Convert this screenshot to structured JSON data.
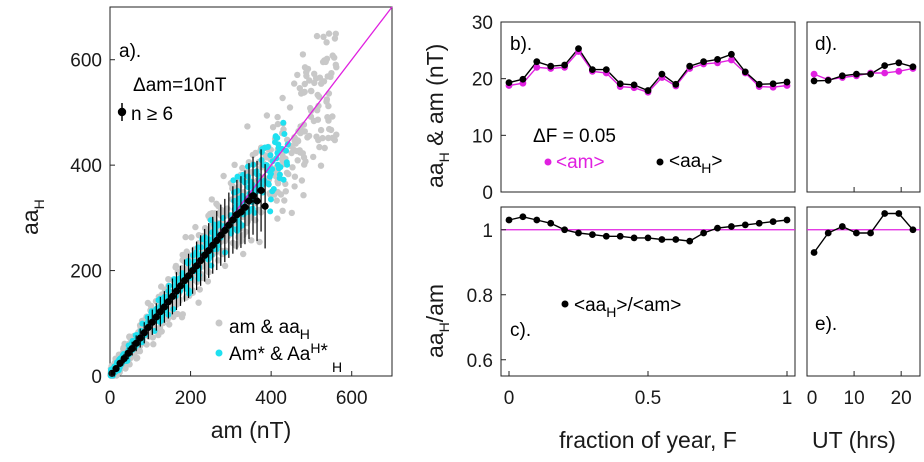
{
  "chart_data": [
    {
      "panel": "a",
      "type": "scatter",
      "panel_label": "a).",
      "xlabel": "am (nT)",
      "ylabel_main": "aa",
      "ylabel_sub": "H",
      "xlim": [
        0,
        700
      ],
      "ylim": [
        0,
        700
      ],
      "xticks": [
        0,
        200,
        400,
        600
      ],
      "yticks": [
        0,
        200,
        400,
        600
      ],
      "annotation_bin": "Δam=10nT",
      "annotation_n": "n ≥ 6",
      "legend": {
        "gray_a": "am  &  aa",
        "gray_sub": "H",
        "cyan_a": "Am* & Aa",
        "cyan_sup": "H",
        "cyan_star": "*",
        "cyan_sub": "H"
      },
      "reference_line": [
        [
          0,
          0
        ],
        [
          700,
          700
        ]
      ],
      "colors": {
        "gray": "#c8c8c8",
        "cyan": "#1ee0f0",
        "black": "#000000",
        "magenta": "#e020e0"
      },
      "binned_means": {
        "x": [
          5,
          15,
          25,
          35,
          45,
          55,
          65,
          75,
          85,
          95,
          105,
          115,
          125,
          135,
          145,
          155,
          165,
          175,
          185,
          195,
          205,
          215,
          225,
          235,
          245,
          255,
          265,
          275,
          285,
          295,
          305,
          315,
          325,
          335,
          345,
          355,
          365,
          375,
          385
        ],
        "y": [
          5,
          14,
          24,
          33,
          43,
          52,
          62,
          72,
          82,
          92,
          102,
          112,
          122,
          131,
          141,
          151,
          161,
          171,
          181,
          190,
          200,
          209,
          219,
          229,
          238,
          248,
          257,
          267,
          276,
          286,
          296,
          306,
          311,
          320,
          332,
          342,
          332,
          352,
          322
        ],
        "err": [
          3,
          5,
          7,
          9,
          11,
          13,
          15,
          18,
          20,
          22,
          24,
          26,
          28,
          30,
          32,
          34,
          36,
          38,
          40,
          42,
          44,
          46,
          48,
          50,
          52,
          54,
          56,
          58,
          60,
          62,
          64,
          66,
          68,
          70,
          72,
          74,
          76,
          78,
          80
        ]
      }
    },
    {
      "panel": "b",
      "type": "line",
      "panel_label": "b).",
      "ylabel_a": "aa",
      "ylabel_sub": "H",
      "ylabel_b": " & am (nT)",
      "xlim": [
        0,
        1
      ],
      "ylim": [
        0,
        30
      ],
      "yticks": [
        0,
        10,
        20,
        30
      ],
      "annotation": "ΔF = 0.05",
      "legend_am": "<am>",
      "legend_aa_a": "<aa",
      "legend_aa_sub": "H",
      "legend_aa_b": ">",
      "x": [
        0.0,
        0.05,
        0.1,
        0.15,
        0.2,
        0.25,
        0.3,
        0.35,
        0.4,
        0.45,
        0.5,
        0.55,
        0.6,
        0.65,
        0.7,
        0.75,
        0.8,
        0.85,
        0.9,
        0.95,
        1.0
      ],
      "series": [
        {
          "name": "<am>",
          "color": "#e020e0",
          "values": [
            18.8,
            19.2,
            22.0,
            21.8,
            22.0,
            24.8,
            21.3,
            21.0,
            18.6,
            18.4,
            17.6,
            20.2,
            18.7,
            21.8,
            22.6,
            22.8,
            23.3,
            21.0,
            18.6,
            18.5,
            18.8
          ]
        },
        {
          "name": "<aa_H>",
          "color": "#000000",
          "values": [
            19.3,
            19.9,
            23.0,
            22.2,
            22.4,
            25.3,
            21.6,
            21.6,
            19.1,
            18.9,
            17.9,
            20.8,
            19.0,
            22.2,
            23.0,
            23.4,
            24.3,
            21.2,
            19.0,
            19.1,
            19.4
          ]
        }
      ]
    },
    {
      "panel": "c",
      "type": "line",
      "panel_label": "c).",
      "xlabel": "fraction of year, F",
      "ylabel_a": "aa",
      "ylabel_sub": "H",
      "ylabel_b": "/am",
      "xlim": [
        0,
        1
      ],
      "ylim": [
        0.55,
        1.07
      ],
      "xticks": [
        0,
        0.5,
        1
      ],
      "xtick_labels": [
        "0",
        "0.5",
        "1"
      ],
      "yticks": [
        0.6,
        0.8,
        1.0
      ],
      "ytick_labels": [
        "0.6",
        "0.8",
        "1"
      ],
      "legend_a": "<aa",
      "legend_sub": "H",
      "legend_b": ">/<am>",
      "reference": 1.0,
      "x": [
        0.0,
        0.05,
        0.1,
        0.15,
        0.2,
        0.25,
        0.3,
        0.35,
        0.4,
        0.45,
        0.5,
        0.55,
        0.6,
        0.65,
        0.7,
        0.75,
        0.8,
        0.85,
        0.9,
        0.95,
        1.0
      ],
      "values": [
        1.03,
        1.04,
        1.03,
        1.02,
        1.0,
        0.99,
        0.985,
        0.98,
        0.98,
        0.975,
        0.975,
        0.97,
        0.97,
        0.965,
        0.99,
        1.005,
        1.01,
        1.015,
        1.02,
        1.025,
        1.03
      ]
    },
    {
      "panel": "d",
      "type": "line",
      "panel_label": "d).",
      "xlim": [
        0,
        24
      ],
      "ylim": [
        0,
        30
      ],
      "x": [
        1.5,
        4.5,
        7.5,
        10.5,
        13.5,
        16.5,
        19.5,
        22.5
      ],
      "series": [
        {
          "name": "<am>",
          "color": "#e020e0",
          "values": [
            20.8,
            19.8,
            20.2,
            20.5,
            21.0,
            21.0,
            21.3,
            21.8
          ]
        },
        {
          "name": "<aa_H>",
          "color": "#000000",
          "values": [
            19.6,
            19.7,
            20.5,
            20.8,
            20.8,
            22.3,
            22.8,
            22.1
          ]
        }
      ]
    },
    {
      "panel": "e",
      "type": "line",
      "panel_label": "e).",
      "xlabel": "UT (hrs)",
      "xlim": [
        0,
        24
      ],
      "ylim": [
        0.55,
        1.07
      ],
      "xticks": [
        0,
        10,
        20
      ],
      "xtick_labels": [
        "0",
        "10",
        "20"
      ],
      "reference": 1.0,
      "x": [
        1.5,
        4.5,
        7.5,
        10.5,
        13.5,
        16.5,
        19.5,
        22.5
      ],
      "values": [
        0.93,
        0.99,
        1.01,
        0.99,
        0.99,
        1.05,
        1.05,
        1.0
      ]
    }
  ]
}
